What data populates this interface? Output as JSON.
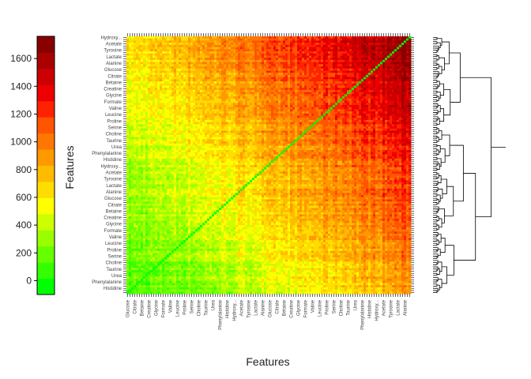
{
  "chart_data": {
    "type": "heatmap",
    "title": "",
    "xlabel": "Features",
    "ylabel": "Features",
    "n_features": 120,
    "colorbar": {
      "ticks": [
        0,
        200,
        400,
        600,
        800,
        1000,
        1200,
        1400,
        1600
      ],
      "range": [
        -100,
        1760
      ],
      "colors": [
        "#00ff00",
        "#33ff00",
        "#66ff00",
        "#99ff00",
        "#ccff00",
        "#ffff00",
        "#ffdd00",
        "#ffbb00",
        "#ff9900",
        "#ff7700",
        "#ff5500",
        "#ff2200",
        "#ee0000",
        "#cc0000",
        "#aa0000",
        "#880000"
      ]
    },
    "diagonal_value": 0,
    "matrix_model": {
      "base_range": [
        150,
        1700
      ],
      "note": "distance grows toward the upper-right corner; diagonal is 0"
    },
    "feature_labels_sample": [
      "Hydroxy...",
      "Acetate",
      "Tyrosine",
      "Lactate",
      "Alanine",
      "Glucose",
      "Citrate",
      "Betaine",
      "Creatine",
      "Glycine",
      "Formate",
      "Valine",
      "Leucine",
      "Proline",
      "Serine",
      "Choline",
      "Taurine",
      "Urea",
      "Phenylalanine",
      "Histidine"
    ]
  }
}
